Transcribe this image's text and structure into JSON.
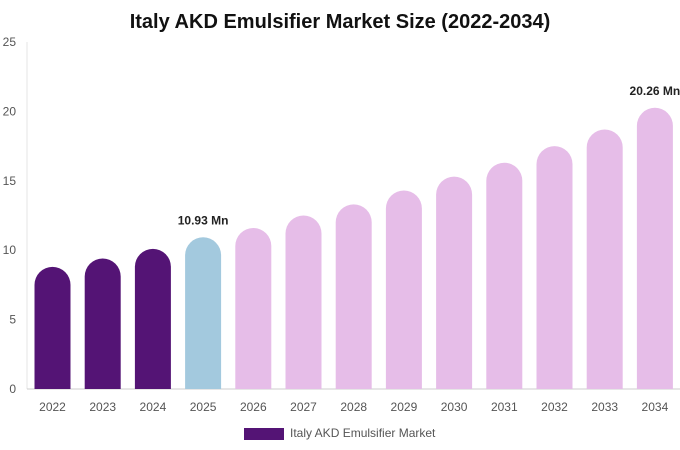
{
  "chart_data": {
    "type": "bar",
    "title": "Italy AKD Emulsifier Market Size (2022-2034)",
    "xlabel": "",
    "ylabel": "",
    "ylim": [
      0,
      25
    ],
    "yticks": [
      0,
      5,
      10,
      15,
      20,
      25
    ],
    "categories": [
      "2022",
      "2023",
      "2024",
      "2025",
      "2026",
      "2027",
      "2028",
      "2029",
      "2030",
      "2031",
      "2032",
      "2033",
      "2034"
    ],
    "series": [
      {
        "name": "Italy AKD Emulsifier Market",
        "values": [
          8.8,
          9.4,
          10.1,
          10.93,
          11.6,
          12.5,
          13.3,
          14.3,
          15.3,
          16.3,
          17.5,
          18.7,
          20.26
        ]
      }
    ],
    "bar_colors": [
      "#541475",
      "#541475",
      "#541475",
      "#a3c9de",
      "#e6bde8",
      "#e6bde8",
      "#e6bde8",
      "#e6bde8",
      "#e6bde8",
      "#e6bde8",
      "#e6bde8",
      "#e6bde8",
      "#e6bde8"
    ],
    "annotations": [
      {
        "index": 3,
        "text": "10.93 Mn"
      },
      {
        "index": 12,
        "text": "20.26 Mn"
      }
    ],
    "legend": {
      "position": "bottom",
      "label": "Italy AKD Emulsifier Market",
      "color": "#541475"
    },
    "grid": false
  }
}
